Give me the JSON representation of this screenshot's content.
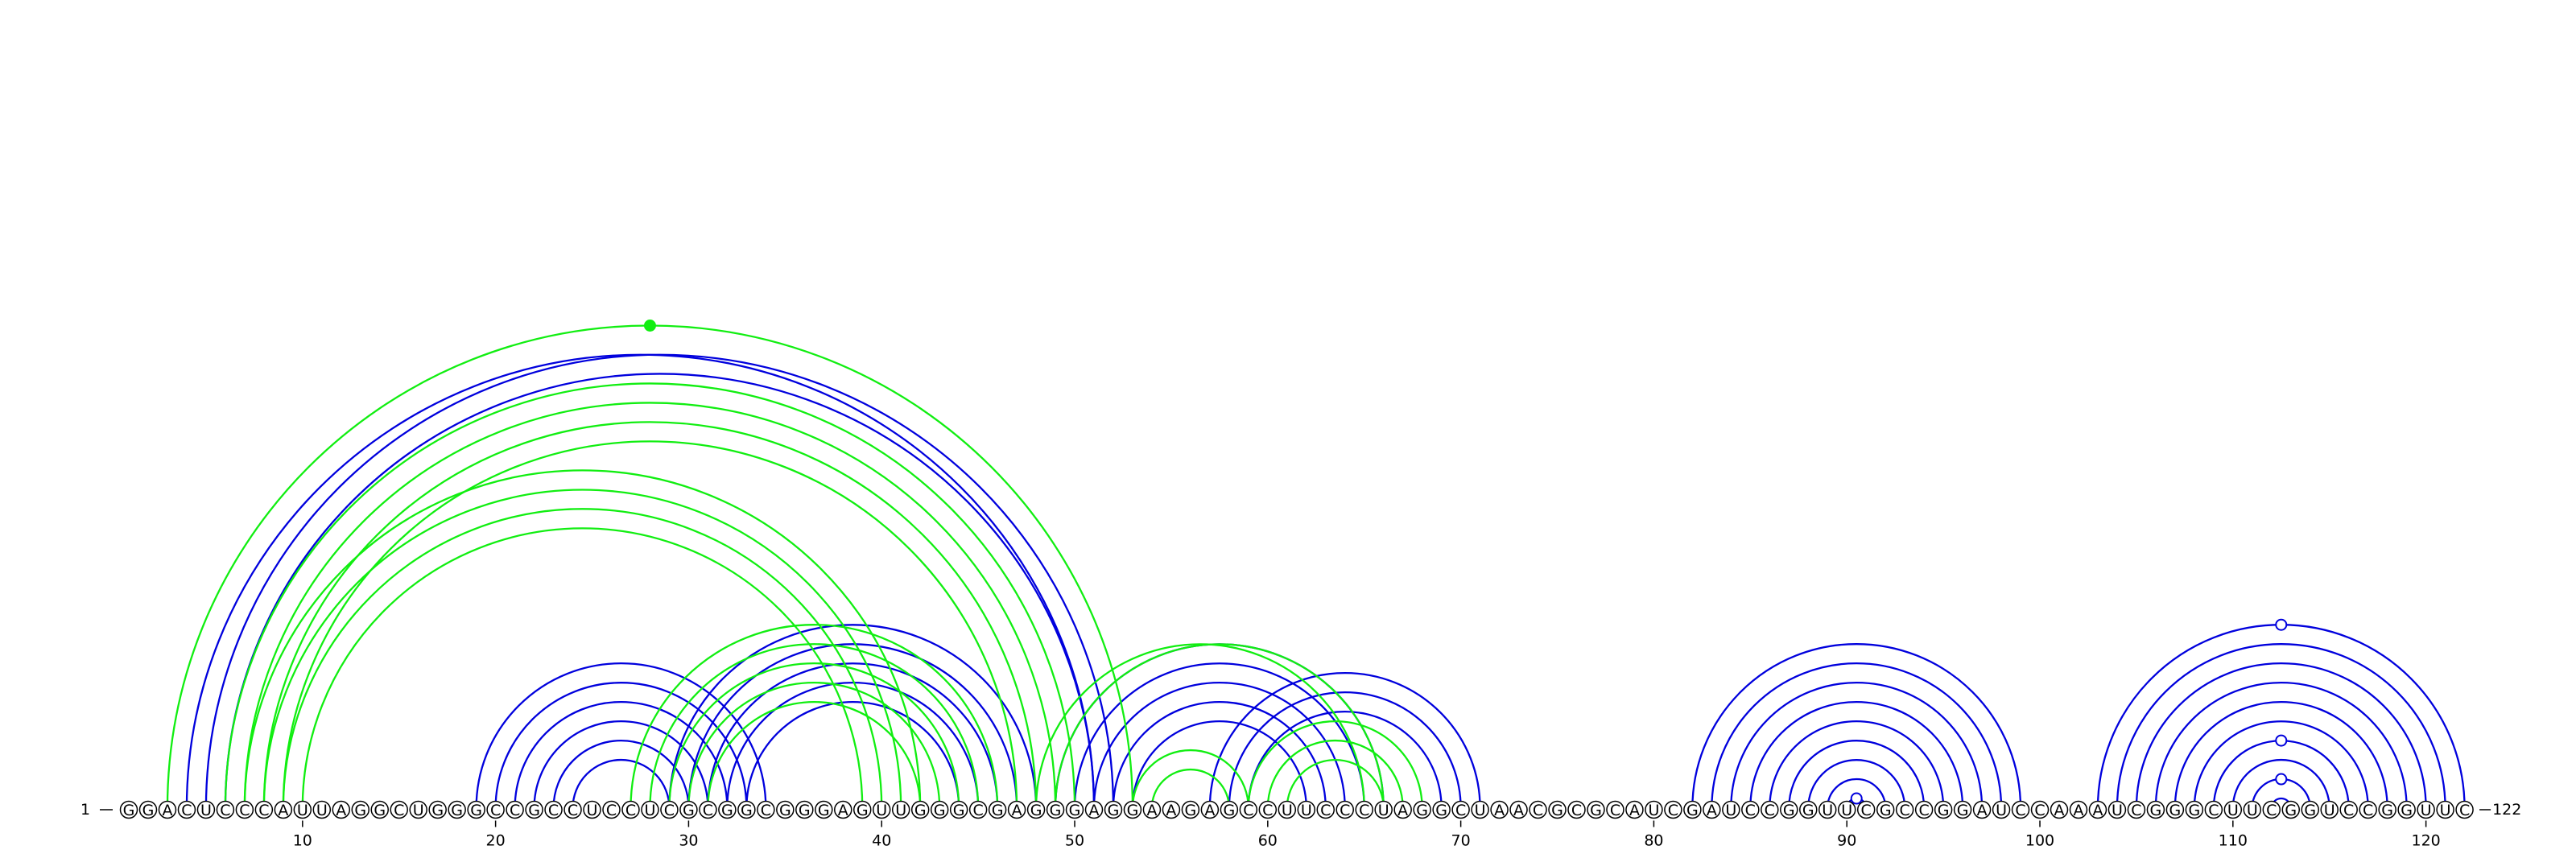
{
  "diagram": {
    "sequence": "GGACUCCCAUUAGGCUGGGCCGCCUCCUCGCGGCGGGAGUUGGGCGAGGGAGGAAGAGCCUUCCCUAGGCUAACGCGCAUCGAUCCGGUUCGCCGGAUCCAAAUCGGGCUUCGGUCCGGUUC",
    "start_label": "1",
    "end_label": "122",
    "tick_labels": [
      "10",
      "20",
      "30",
      "40",
      "50",
      "60",
      "70",
      "80",
      "90",
      "100",
      "110",
      "120"
    ],
    "tick_positions": [
      10,
      20,
      30,
      40,
      50,
      60,
      70,
      80,
      90,
      100,
      110,
      120
    ],
    "colors": {
      "blue": "#0000dd",
      "green": "#11ee11",
      "marker_green": "#11ee11"
    },
    "arcs": [
      {
        "color": "blue",
        "pairs": [
          [
            5,
            52
          ],
          [
            4,
            51
          ],
          [
            6,
            51
          ]
        ]
      },
      {
        "color": "blue",
        "pairs": [
          [
            19,
            34
          ],
          [
            20,
            33
          ],
          [
            21,
            32
          ],
          [
            22,
            31
          ],
          [
            23,
            30
          ],
          [
            24,
            29
          ]
        ]
      },
      {
        "color": "blue",
        "pairs": [
          [
            29,
            48
          ],
          [
            30,
            47
          ],
          [
            31,
            46
          ],
          [
            32,
            45
          ],
          [
            33,
            44
          ]
        ]
      },
      {
        "color": "blue",
        "pairs": [
          [
            49,
            66
          ],
          [
            50,
            65
          ],
          [
            51,
            64
          ],
          [
            52,
            63
          ],
          [
            53,
            62
          ]
        ]
      },
      {
        "color": "blue",
        "pairs": [
          [
            57,
            71
          ],
          [
            58,
            70
          ],
          [
            59,
            69
          ]
        ]
      },
      {
        "color": "blue",
        "pairs": [
          [
            82,
            99
          ],
          [
            83,
            98
          ],
          [
            84,
            97
          ],
          [
            85,
            96
          ],
          [
            86,
            95
          ],
          [
            87,
            94
          ],
          [
            88,
            93
          ],
          [
            89,
            92
          ],
          [
            90,
            91
          ]
        ]
      },
      {
        "color": "blue",
        "pairs": [
          [
            103,
            122
          ],
          [
            104,
            121
          ],
          [
            105,
            120
          ],
          [
            106,
            119
          ],
          [
            107,
            118
          ],
          [
            108,
            117
          ],
          [
            109,
            116
          ],
          [
            110,
            115
          ],
          [
            111,
            114
          ],
          [
            112,
            113
          ]
        ]
      },
      {
        "color": "green",
        "pairs": [
          [
            3,
            53
          ]
        ]
      },
      {
        "color": "green",
        "pairs": [
          [
            6,
            50
          ],
          [
            7,
            49
          ],
          [
            8,
            48
          ],
          [
            9,
            47
          ]
        ]
      },
      {
        "color": "green",
        "pairs": [
          [
            7,
            42
          ],
          [
            8,
            41
          ],
          [
            9,
            40
          ],
          [
            10,
            39
          ]
        ]
      },
      {
        "color": "green",
        "pairs": [
          [
            27,
            46
          ],
          [
            28,
            45
          ],
          [
            29,
            44
          ],
          [
            30,
            43
          ],
          [
            31,
            42
          ]
        ]
      },
      {
        "color": "green",
        "pairs": [
          [
            48,
            65
          ],
          [
            49,
            66
          ]
        ]
      },
      {
        "color": "green",
        "pairs": [
          [
            53,
            59
          ],
          [
            54,
            58
          ]
        ]
      },
      {
        "color": "green",
        "pairs": [
          [
            59,
            68
          ],
          [
            60,
            67
          ],
          [
            61,
            66
          ]
        ]
      }
    ],
    "markers": [
      {
        "color": "green",
        "filled": true,
        "i": 3,
        "j": 53
      },
      {
        "color": "blue",
        "filled": false,
        "i": 90,
        "j": 91
      },
      {
        "color": "blue",
        "filled": false,
        "i": 111,
        "j": 114
      },
      {
        "color": "blue",
        "filled": false,
        "i": 109,
        "j": 116
      },
      {
        "color": "blue",
        "filled": false,
        "i": 103,
        "j": 122
      }
    ]
  }
}
